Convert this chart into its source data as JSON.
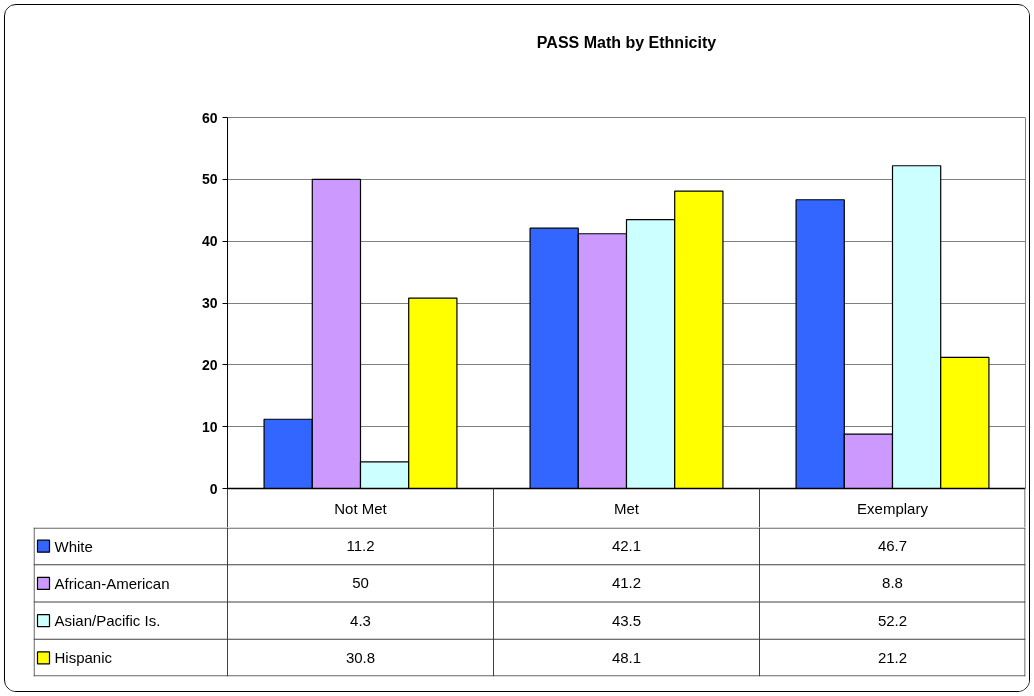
{
  "chart_data": {
    "type": "bar",
    "title": "PASS Math by Ethnicity",
    "categories": [
      "Not Met",
      "Met",
      "Exemplary"
    ],
    "series": [
      {
        "name": "White",
        "color": "#3366ff",
        "values": [
          11.2,
          42.1,
          46.7
        ]
      },
      {
        "name": "African-American",
        "color": "#cc99ff",
        "values": [
          50,
          41.2,
          8.8
        ]
      },
      {
        "name": "Asian/Pacific Is.",
        "color": "#ccffff",
        "values": [
          4.3,
          43.5,
          52.2
        ]
      },
      {
        "name": "Hispanic",
        "color": "#ffff00",
        "values": [
          30.8,
          48.1,
          21.2
        ]
      }
    ],
    "ylim": [
      0,
      60
    ],
    "yticks": [
      0,
      10,
      20,
      30,
      40,
      50,
      60
    ],
    "grid": "y",
    "legend": "bottom",
    "data_labels": true
  }
}
